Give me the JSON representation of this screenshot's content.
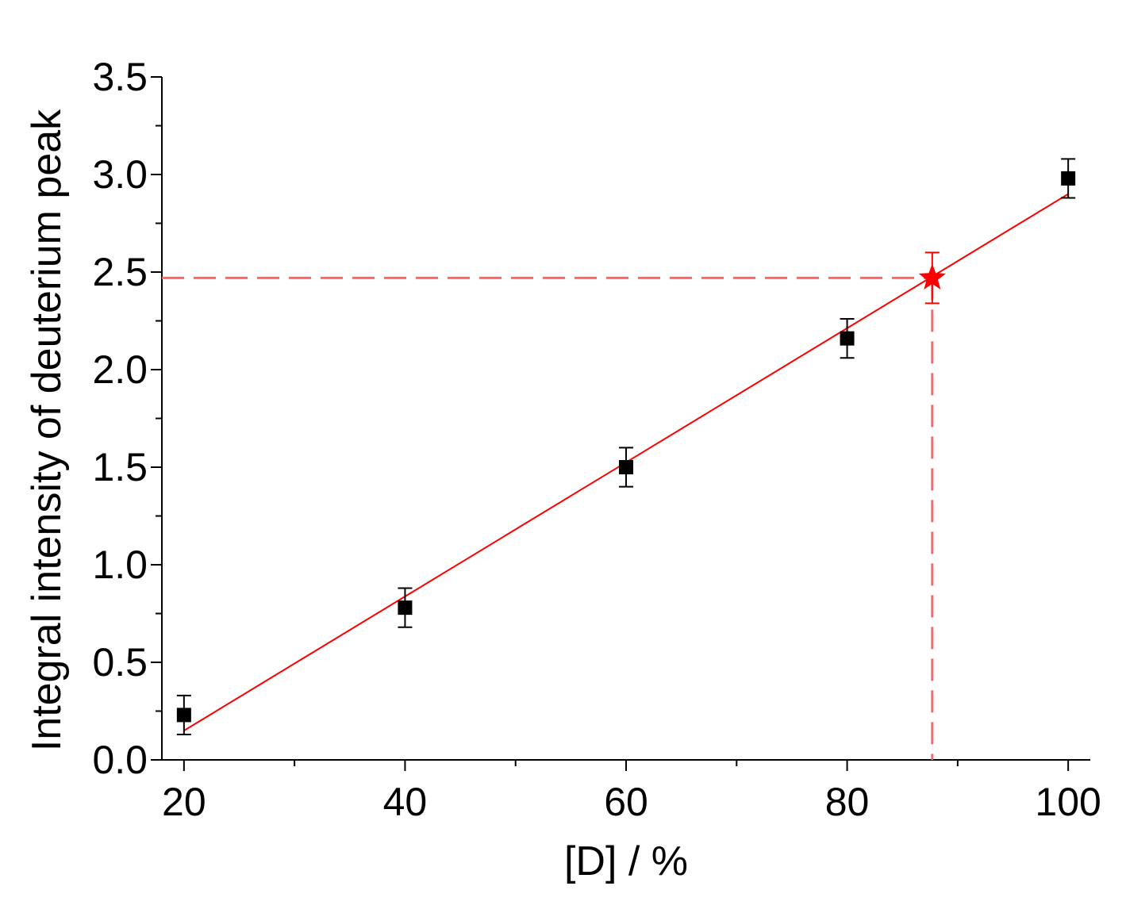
{
  "chart_data": {
    "type": "scatter",
    "title": "",
    "xlabel": "[D] / %",
    "ylabel": "Integral intensity of deuterium peak",
    "xlim": [
      18,
      102
    ],
    "ylim": [
      0,
      3.5
    ],
    "x_ticks": [
      "20",
      "40",
      "60",
      "80",
      "100"
    ],
    "y_ticks": [
      "0.0",
      "0.5",
      "1.0",
      "1.5",
      "2.0",
      "2.5",
      "3.0",
      "3.5"
    ],
    "grid": false,
    "series": [
      {
        "marker": "square",
        "color": "#000000",
        "points": [
          {
            "x": 20,
            "y": 0.23,
            "err": 0.1
          },
          {
            "x": 40,
            "y": 0.78,
            "err": 0.1
          },
          {
            "x": 60,
            "y": 1.5,
            "err": 0.1
          },
          {
            "x": 80,
            "y": 2.16,
            "err": 0.1
          },
          {
            "x": 100,
            "y": 2.98,
            "err": 0.1
          }
        ]
      },
      {
        "marker": "star",
        "color": "#ff0000",
        "points": [
          {
            "x": 87.7,
            "y": 2.47,
            "err": 0.13
          }
        ]
      }
    ],
    "fit_line": {
      "color": "#ff0000",
      "x": [
        20,
        100
      ],
      "y": [
        0.15,
        2.9
      ]
    },
    "guide_lines": {
      "color": "#ff6666",
      "style": "dashed",
      "x": 87.7,
      "y": 2.47
    }
  }
}
